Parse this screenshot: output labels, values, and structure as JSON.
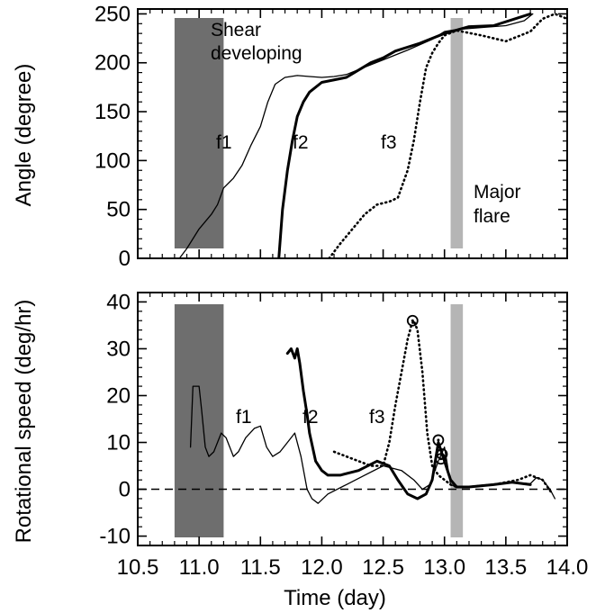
{
  "chart_data": [
    {
      "type": "line",
      "title": "",
      "xlabel": "",
      "ylabel": "Angle (degree)",
      "xlim": [
        10.5,
        14.0
      ],
      "ylim": [
        0,
        255
      ],
      "xticks": [
        "10.5",
        "11.0",
        "11.5",
        "12.0",
        "12.5",
        "13.0",
        "13.5",
        "14.0"
      ],
      "yticks": [
        "0",
        "50",
        "100",
        "150",
        "200",
        "250"
      ],
      "grid": false,
      "shaded_regions": [
        {
          "x": [
            10.8,
            11.2
          ],
          "color": "#6e6e6e",
          "label": "Shear developing"
        },
        {
          "x": [
            13.05,
            13.15
          ],
          "color": "#b5b5b5",
          "label": "Major flare"
        }
      ],
      "series": [
        {
          "name": "f1",
          "style": "thin",
          "x": [
            10.84,
            10.9,
            11.0,
            11.1,
            11.15,
            11.2,
            11.28,
            11.35,
            11.42,
            11.5,
            11.56,
            11.62,
            11.7,
            11.8,
            11.9,
            12.0,
            12.1,
            12.2,
            12.3,
            12.5,
            12.7,
            12.9,
            13.0,
            13.1,
            13.3,
            13.5,
            13.65,
            13.72
          ],
          "y": [
            0,
            10,
            30,
            45,
            55,
            72,
            82,
            95,
            115,
            135,
            160,
            178,
            185,
            187,
            186,
            185,
            186,
            188,
            193,
            203,
            213,
            224,
            232,
            234,
            236,
            238,
            243,
            250
          ]
        },
        {
          "name": "f2",
          "style": "thick",
          "x": [
            11.65,
            11.68,
            11.72,
            11.76,
            11.8,
            11.85,
            11.9,
            12.0,
            12.2,
            12.4,
            12.5,
            12.6,
            12.8,
            13.0,
            13.2,
            13.4,
            13.6,
            13.7
          ],
          "y": [
            0,
            50,
            90,
            120,
            145,
            160,
            170,
            180,
            185,
            200,
            205,
            212,
            220,
            230,
            237,
            238,
            246,
            250
          ]
        },
        {
          "name": "f3",
          "style": "dotted",
          "x": [
            12.06,
            12.15,
            12.25,
            12.35,
            12.45,
            12.55,
            12.62,
            12.7,
            12.75,
            12.8,
            12.85,
            12.9,
            12.95,
            13.0,
            13.1,
            13.3,
            13.5,
            13.7,
            13.8,
            13.9,
            14.0
          ],
          "y": [
            0,
            15,
            30,
            45,
            55,
            58,
            62,
            90,
            120,
            160,
            195,
            210,
            220,
            228,
            233,
            228,
            222,
            232,
            245,
            250,
            245
          ]
        }
      ],
      "annotations": [
        "Shear",
        "developing",
        "Major",
        "flare"
      ]
    },
    {
      "type": "line",
      "title": "",
      "xlabel": "Time (day)",
      "ylabel": "Rotational speed (deg/hr)",
      "xlim": [
        10.5,
        14.0
      ],
      "ylim": [
        -12,
        42
      ],
      "xticks": [
        "10.5",
        "11.0",
        "11.5",
        "12.0",
        "12.5",
        "13.0",
        "13.5",
        "14.0"
      ],
      "yticks": [
        "-10",
        "0",
        "10",
        "20",
        "30",
        "40"
      ],
      "grid": false,
      "reference_line": {
        "y": 0,
        "style": "dashed"
      },
      "shaded_regions": [
        {
          "x": [
            10.8,
            11.2
          ],
          "color": "#6e6e6e"
        },
        {
          "x": [
            13.05,
            13.15
          ],
          "color": "#b5b5b5"
        }
      ],
      "series": [
        {
          "name": "f1",
          "style": "thin",
          "x": [
            10.93,
            10.95,
            10.97,
            11.0,
            11.02,
            11.05,
            11.08,
            11.12,
            11.18,
            11.22,
            11.28,
            11.32,
            11.38,
            11.45,
            11.5,
            11.55,
            11.6,
            11.66,
            11.72,
            11.78,
            11.83,
            11.88,
            11.92,
            11.97,
            12.05,
            12.2,
            12.35,
            12.5,
            12.65,
            12.75,
            12.82,
            12.88,
            12.95,
            13.0,
            13.05,
            13.1,
            13.2,
            13.4,
            13.55,
            13.7,
            13.75,
            13.8,
            13.86,
            13.9
          ],
          "y": [
            9,
            22,
            22,
            22,
            17,
            9,
            7,
            8,
            12,
            11,
            7,
            8,
            11,
            13,
            13.5,
            9,
            7,
            8,
            10,
            12,
            7,
            0,
            -2,
            -3,
            -1,
            1,
            3,
            5,
            4,
            2,
            0,
            1,
            6,
            9,
            1,
            0.5,
            0.5,
            1,
            1.5,
            1.2,
            2.5,
            2,
            0,
            -2
          ]
        },
        {
          "name": "f2",
          "style": "thick",
          "x": [
            11.72,
            11.75,
            11.78,
            11.8,
            11.82,
            11.85,
            11.88,
            11.9,
            11.95,
            12.0,
            12.05,
            12.15,
            12.3,
            12.45,
            12.55,
            12.62,
            12.7,
            12.78,
            12.85,
            12.9,
            12.95,
            13.0,
            13.05,
            13.1,
            13.2,
            13.4,
            13.55,
            13.7
          ],
          "y": [
            29,
            30,
            28,
            30,
            27,
            21,
            16,
            12,
            6,
            4,
            3,
            3,
            4,
            6,
            5,
            2,
            -1,
            -2,
            -1,
            2,
            10,
            6,
            2,
            0.5,
            0.5,
            1,
            1.5,
            1
          ]
        },
        {
          "name": "f3",
          "style": "dotted",
          "x": [
            12.1,
            12.2,
            12.3,
            12.4,
            12.5,
            12.55,
            12.6,
            12.65,
            12.7,
            12.73,
            12.75,
            12.78,
            12.82,
            12.86,
            12.9,
            12.95,
            13.0,
            13.05,
            13.1,
            13.2,
            13.4,
            13.6,
            13.7,
            13.8,
            13.88
          ],
          "y": [
            8,
            7,
            6,
            5,
            5,
            10,
            18,
            25,
            32,
            35,
            36,
            34,
            25,
            12,
            5,
            3,
            2,
            1,
            0.5,
            0.5,
            1,
            2,
            3,
            2,
            -1
          ]
        }
      ],
      "circled_points": [
        {
          "x": 12.74,
          "y": 36
        },
        {
          "x": 12.95,
          "y": 10.5
        },
        {
          "x": 12.98,
          "y": 7.5
        },
        {
          "x": 12.97,
          "y": 6.5
        }
      ]
    }
  ]
}
